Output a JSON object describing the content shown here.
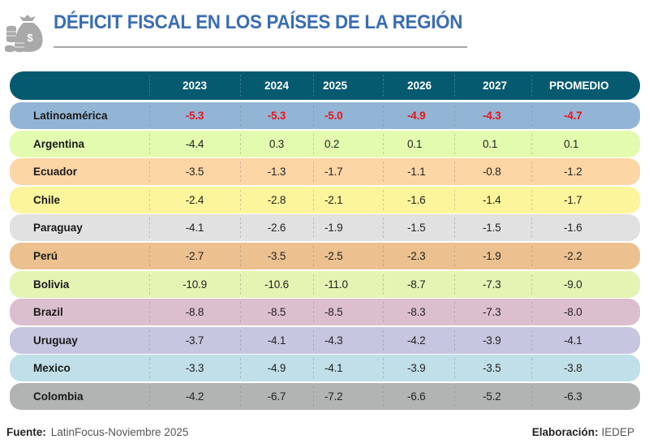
{
  "header": {
    "title": "DÉFICIT FISCAL EN LOS PAÍSES DE LA REGIÓN",
    "icon": "money-bag-coins-icon"
  },
  "table": {
    "columns": [
      "",
      "2023",
      "2024",
      "2025",
      "2026",
      "2027",
      "PROMEDIO"
    ],
    "header_color": "#055a70",
    "highlight_value_color": "#e8141b",
    "rows": [
      {
        "country": "Latinoamérica",
        "values": [
          "-5.3",
          "-5.3",
          "-5.0",
          "-4.9",
          "-4.3",
          "-4.7"
        ],
        "color": "#93b5d5",
        "highlight": true
      },
      {
        "country": "Argentina",
        "values": [
          "-4.4",
          "0.3",
          "0.2",
          "0.1",
          "0.1",
          "0.1"
        ],
        "color": "#e3fbae",
        "highlight": false
      },
      {
        "country": "Ecuador",
        "values": [
          "-3.5",
          "-1.3",
          "-1.7",
          "-1.1",
          "-0.8",
          "-1.2"
        ],
        "color": "#fdd6a6",
        "highlight": false
      },
      {
        "country": "Chile",
        "values": [
          "-2.4",
          "-2.8",
          "-2.1",
          "-1.6",
          "-1.4",
          "-1.7"
        ],
        "color": "#fdf59b",
        "highlight": false
      },
      {
        "country": "Paraguay",
        "values": [
          "-4.1",
          "-2.6",
          "-1.9",
          "-1.5",
          "-1.5",
          "-1.6"
        ],
        "color": "#e1e1e1",
        "highlight": false
      },
      {
        "country": "Perú",
        "values": [
          "-2.7",
          "-3.5",
          "-2.5",
          "-2.3",
          "-1.9",
          "-2.2"
        ],
        "color": "#ecc18f",
        "highlight": false
      },
      {
        "country": "Bolivia",
        "values": [
          "-10.9",
          "-10.6",
          "-11.0",
          "-8.7",
          "-7.3",
          "-9.0"
        ],
        "color": "#e4f4b3",
        "highlight": false
      },
      {
        "country": "Brazil",
        "values": [
          "-8.8",
          "-8.5",
          "-8.5",
          "-8.3",
          "-7.3",
          "-8.0"
        ],
        "color": "#dcbfce",
        "highlight": false
      },
      {
        "country": "Uruguay",
        "values": [
          "-3.7",
          "-4.1",
          "-4.3",
          "-4.2",
          "-3.9",
          "-4.1"
        ],
        "color": "#c6c6e0",
        "highlight": false
      },
      {
        "country": "Mexico",
        "values": [
          "-3.3",
          "-4.9",
          "-4.1",
          "-3.9",
          "-3.5",
          "-3.8"
        ],
        "color": "#c0dfe8",
        "highlight": false
      },
      {
        "country": "Colombia",
        "values": [
          "-4.2",
          "-6.7",
          "-7.2",
          "-6.6",
          "-5.2",
          "-6.3"
        ],
        "color": "#b1b4b3",
        "highlight": false
      }
    ]
  },
  "footer": {
    "source_label": "Fuente:",
    "source_text": "LatinFocus-Noviembre 2025",
    "credit_label": "Elaboración:",
    "credit_text": "IEDEP"
  }
}
